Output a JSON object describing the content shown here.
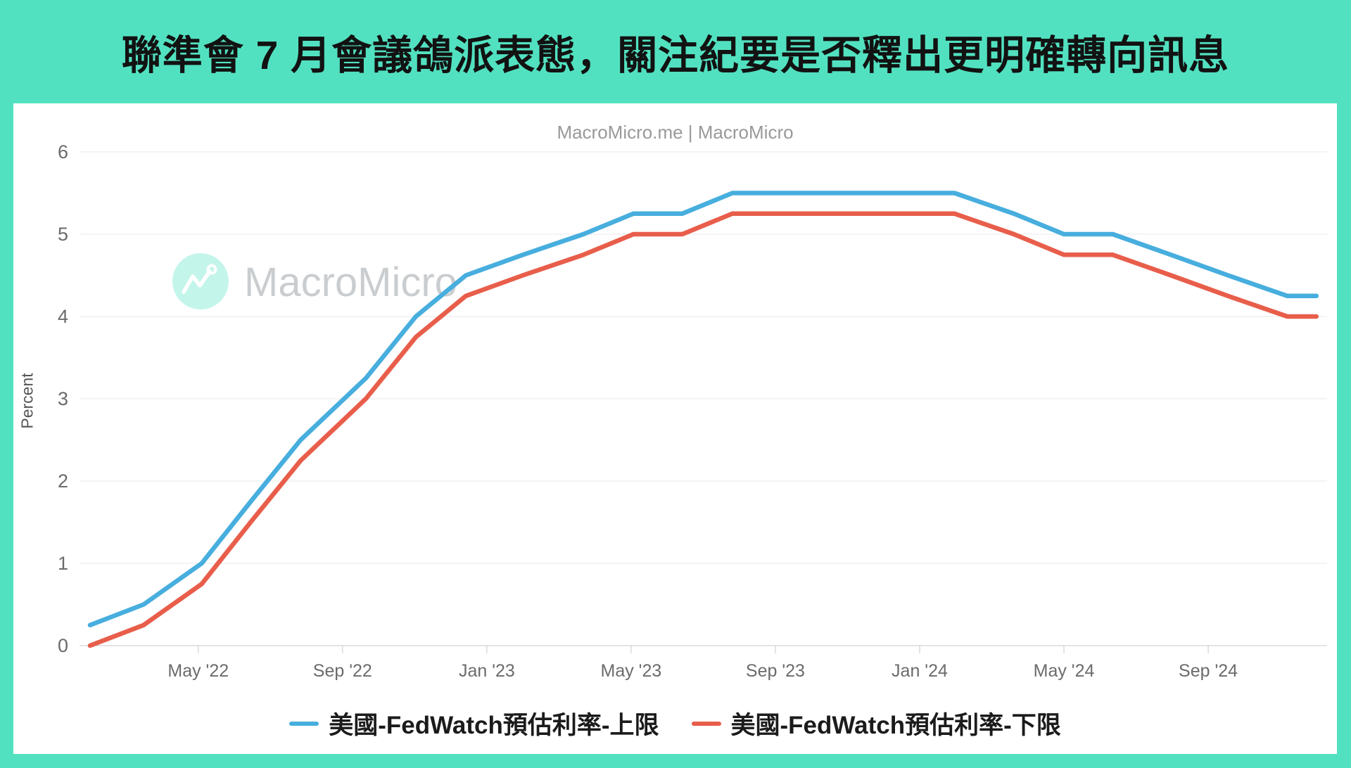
{
  "header": {
    "title": "聯準會 7 月會議鴿派表態，關注紀要是否釋出更明確轉向訊息"
  },
  "watermark": {
    "brand": "MacroMicro"
  },
  "theme": {
    "banner_teal": "#52E1C0",
    "upper_line_blue": "#47AEDE",
    "lower_line_red": "#E85E4B"
  },
  "chart_data": {
    "type": "line",
    "subtitle": "MacroMicro.me | MacroMicro",
    "xlabel": "",
    "ylabel": "Percent",
    "ylim": [
      0,
      6
    ],
    "y_ticks": [
      0,
      1,
      2,
      3,
      4,
      5,
      6
    ],
    "grid": "horizontal",
    "legend_position": "bottom",
    "x_ticks": [
      {
        "label": "May '22",
        "date": "2022-05-01"
      },
      {
        "label": "Sep '22",
        "date": "2022-09-01"
      },
      {
        "label": "Jan '23",
        "date": "2023-01-01"
      },
      {
        "label": "May '23",
        "date": "2023-05-01"
      },
      {
        "label": "Sep '23",
        "date": "2023-09-01"
      },
      {
        "label": "Jan '24",
        "date": "2024-01-01"
      },
      {
        "label": "May '24",
        "date": "2024-05-01"
      },
      {
        "label": "Sep '24",
        "date": "2024-09-01"
      }
    ],
    "series": [
      {
        "id": "upper",
        "name": "美國-FedWatch預估利率-上限",
        "color": "#47AEDE",
        "points": [
          [
            "2022-02-01",
            0.25
          ],
          [
            "2022-03-16",
            0.5
          ],
          [
            "2022-05-04",
            1.0
          ],
          [
            "2022-06-15",
            1.75
          ],
          [
            "2022-07-27",
            2.5
          ],
          [
            "2022-09-21",
            3.25
          ],
          [
            "2022-11-02",
            4.0
          ],
          [
            "2022-12-14",
            4.5
          ],
          [
            "2023-02-01",
            4.75
          ],
          [
            "2023-03-22",
            5.0
          ],
          [
            "2023-05-03",
            5.25
          ],
          [
            "2023-06-14",
            5.25
          ],
          [
            "2023-07-26",
            5.5
          ],
          [
            "2023-09-20",
            5.5
          ],
          [
            "2023-11-01",
            5.5
          ],
          [
            "2023-12-13",
            5.5
          ],
          [
            "2024-01-31",
            5.5
          ],
          [
            "2024-03-20",
            5.25
          ],
          [
            "2024-05-01",
            5.0
          ],
          [
            "2024-06-12",
            5.0
          ],
          [
            "2024-07-31",
            4.75
          ],
          [
            "2024-09-18",
            4.5
          ],
          [
            "2024-11-07",
            4.25
          ],
          [
            "2024-12-01",
            4.25
          ]
        ]
      },
      {
        "id": "lower",
        "name": "美國-FedWatch預估利率-下限",
        "color": "#E85E4B",
        "points": [
          [
            "2022-02-01",
            0.0
          ],
          [
            "2022-03-16",
            0.25
          ],
          [
            "2022-05-04",
            0.75
          ],
          [
            "2022-06-15",
            1.5
          ],
          [
            "2022-07-27",
            2.25
          ],
          [
            "2022-09-21",
            3.0
          ],
          [
            "2022-11-02",
            3.75
          ],
          [
            "2022-12-14",
            4.25
          ],
          [
            "2023-02-01",
            4.5
          ],
          [
            "2023-03-22",
            4.75
          ],
          [
            "2023-05-03",
            5.0
          ],
          [
            "2023-06-14",
            5.0
          ],
          [
            "2023-07-26",
            5.25
          ],
          [
            "2023-09-20",
            5.25
          ],
          [
            "2023-11-01",
            5.25
          ],
          [
            "2023-12-13",
            5.25
          ],
          [
            "2024-01-31",
            5.25
          ],
          [
            "2024-03-20",
            5.0
          ],
          [
            "2024-05-01",
            4.75
          ],
          [
            "2024-06-12",
            4.75
          ],
          [
            "2024-07-31",
            4.5
          ],
          [
            "2024-09-18",
            4.25
          ],
          [
            "2024-11-07",
            4.0
          ],
          [
            "2024-12-01",
            4.0
          ]
        ]
      }
    ]
  }
}
